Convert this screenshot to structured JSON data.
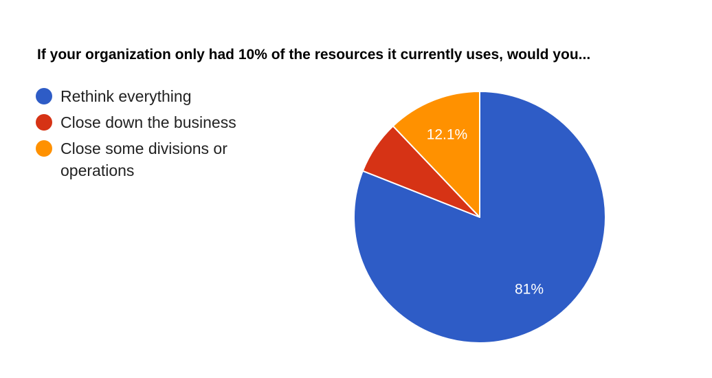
{
  "chart_data": {
    "type": "pie",
    "title": "If your organization only had 10% of the resources it currently uses, would you...",
    "slices": [
      {
        "label": "Rethink everything",
        "value": 81,
        "display": "81%",
        "color": "#2e5cc6"
      },
      {
        "label": "Close down the business",
        "value": 6.9,
        "display": "",
        "color": "#d63315"
      },
      {
        "label": "Close some divisions or operations",
        "value": 12.1,
        "display": "12.1%",
        "color": "#ff9100"
      }
    ],
    "legend_position": "left",
    "start": "top",
    "direction": "clockwise"
  }
}
